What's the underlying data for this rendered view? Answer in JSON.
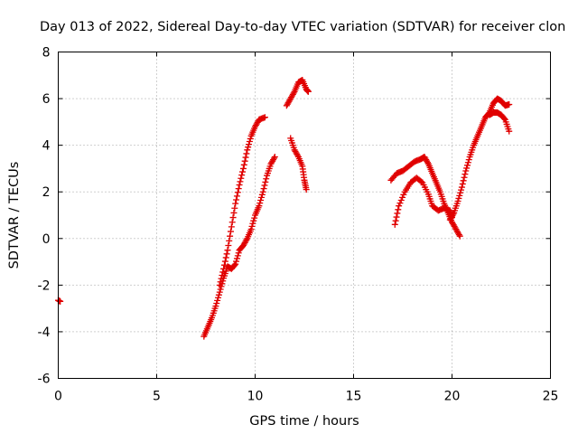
{
  "chart_data": {
    "type": "scatter",
    "title": "Day 013 of 2022, Sidereal Day-to-day VTEC variation (SDTVAR) for receiver clon",
    "xlabel": "GPS time / hours",
    "ylabel": "SDTVAR / TECUs",
    "xlim": [
      0,
      25
    ],
    "ylim": [
      -6,
      8
    ],
    "x_ticks": [
      0,
      5,
      10,
      15,
      20,
      25
    ],
    "y_ticks": [
      -6,
      -4,
      -2,
      0,
      2,
      4,
      6,
      8
    ],
    "grid": true,
    "marker": "plus",
    "colors": {
      "series": "#e00000",
      "grid": "#a0a0a0",
      "axis": "#000000"
    },
    "series": [
      {
        "segments": [
          [
            [
              0.0,
              -2.65
            ],
            [
              0.1,
              -2.7
            ]
          ],
          [
            [
              7.4,
              -4.2
            ],
            [
              7.6,
              -3.8
            ],
            [
              7.8,
              -3.4
            ],
            [
              8.0,
              -2.9
            ],
            [
              8.2,
              -2.3
            ],
            [
              8.4,
              -1.7
            ],
            [
              8.6,
              -1.2
            ],
            [
              8.8,
              -1.3
            ],
            [
              9.0,
              -1.1
            ],
            [
              9.2,
              -0.5
            ],
            [
              9.4,
              -0.3
            ],
            [
              9.6,
              0.0
            ],
            [
              9.8,
              0.4
            ],
            [
              10.0,
              1.0
            ],
            [
              10.2,
              1.4
            ],
            [
              10.4,
              2.0
            ],
            [
              10.6,
              2.7
            ],
            [
              10.8,
              3.2
            ],
            [
              11.0,
              3.5
            ]
          ],
          [
            [
              8.2,
              -2.0
            ],
            [
              8.4,
              -1.3
            ],
            [
              8.6,
              -0.5
            ],
            [
              8.8,
              0.5
            ],
            [
              9.0,
              1.5
            ],
            [
              9.2,
              2.3
            ],
            [
              9.4,
              3.0
            ],
            [
              9.6,
              3.8
            ],
            [
              9.8,
              4.4
            ],
            [
              10.0,
              4.8
            ],
            [
              10.2,
              5.1
            ],
            [
              10.5,
              5.2
            ]
          ],
          [
            [
              11.8,
              4.3
            ],
            [
              12.0,
              3.8
            ],
            [
              12.2,
              3.5
            ],
            [
              12.4,
              3.1
            ],
            [
              12.5,
              2.5
            ],
            [
              12.6,
              2.1
            ]
          ],
          [
            [
              11.6,
              5.7
            ],
            [
              11.8,
              6.0
            ],
            [
              12.0,
              6.3
            ],
            [
              12.2,
              6.7
            ],
            [
              12.4,
              6.8
            ],
            [
              12.6,
              6.4
            ],
            [
              12.7,
              6.3
            ]
          ],
          [
            [
              16.9,
              2.5
            ],
            [
              17.2,
              2.8
            ],
            [
              17.5,
              2.9
            ],
            [
              17.8,
              3.1
            ],
            [
              18.1,
              3.3
            ],
            [
              18.4,
              3.4
            ],
            [
              18.6,
              3.5
            ],
            [
              18.8,
              3.2
            ],
            [
              19.0,
              2.8
            ],
            [
              19.2,
              2.4
            ],
            [
              19.4,
              2.0
            ],
            [
              19.6,
              1.5
            ],
            [
              19.8,
              1.1
            ],
            [
              20.0,
              0.7
            ],
            [
              20.2,
              0.4
            ],
            [
              20.4,
              0.1
            ]
          ],
          [
            [
              17.1,
              0.6
            ],
            [
              17.3,
              1.4
            ],
            [
              17.6,
              2.0
            ],
            [
              17.9,
              2.4
            ],
            [
              18.2,
              2.6
            ],
            [
              18.5,
              2.4
            ],
            [
              18.8,
              1.9
            ],
            [
              19.0,
              1.4
            ],
            [
              19.3,
              1.2
            ],
            [
              19.6,
              1.3
            ],
            [
              19.9,
              1.2
            ],
            [
              20.0,
              0.9
            ]
          ],
          [
            [
              19.9,
              0.8
            ],
            [
              20.1,
              1.1
            ],
            [
              20.3,
              1.6
            ],
            [
              20.5,
              2.2
            ],
            [
              20.7,
              2.9
            ],
            [
              20.9,
              3.5
            ],
            [
              21.1,
              4.0
            ],
            [
              21.3,
              4.4
            ],
            [
              21.5,
              4.8
            ],
            [
              21.7,
              5.2
            ],
            [
              21.9,
              5.4
            ],
            [
              22.1,
              5.8
            ],
            [
              22.3,
              6.0
            ],
            [
              22.5,
              5.9
            ],
            [
              22.7,
              5.7
            ],
            [
              22.9,
              5.75
            ]
          ],
          [
            [
              21.9,
              5.3
            ],
            [
              22.1,
              5.4
            ],
            [
              22.3,
              5.4
            ],
            [
              22.5,
              5.3
            ],
            [
              22.7,
              5.1
            ],
            [
              22.9,
              4.6
            ]
          ]
        ]
      }
    ]
  }
}
